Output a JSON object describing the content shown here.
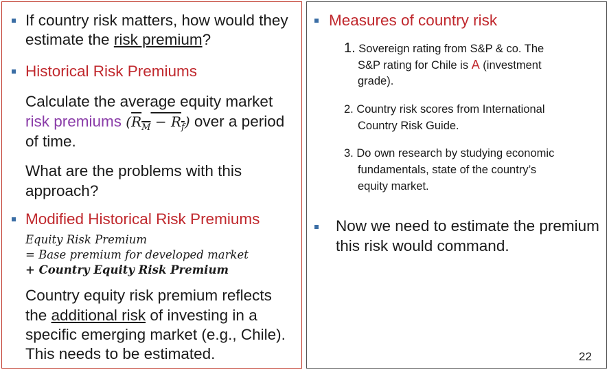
{
  "left": {
    "b1_line1": "If country risk matters, how would they",
    "b1_line2_pre": "estimate the ",
    "b1_line2_link": "risk premium",
    "b1_line2_post": "?",
    "b2_heading": "Historical Risk Premiums",
    "p1_line1": "Calculate the average equity market",
    "p1_line2_colored": "risk premiums",
    "p1_math_open": "(",
    "p1_math_r": "R",
    "p1_math_m": "M",
    "p1_math_minus": " − ",
    "p1_math_f": "f",
    "p1_math_close": ")",
    "p1_line2_post": " over a period",
    "p1_line3": "of time.",
    "p2_line1": "What are the problems with this",
    "p2_line2": "approach?",
    "b3_heading": "Modified Historical Risk Premiums",
    "eq_line1": "Equity Risk Premium",
    "eq_line2": "= Base premium for developed market",
    "eq_line3": "+ Country Equity Risk Premium",
    "p3_line1": "Country equity risk premium reflects",
    "p3_line2_pre": "the ",
    "p3_line2_link": "additional risk",
    "p3_line2_post": " of investing in a",
    "p3_line3": "specific emerging market (e.g., Chile).",
    "p3_line4": "This needs to be estimated."
  },
  "right": {
    "heading": "Measures of country risk",
    "i1_num": "1.",
    "i1_line1": " Sovereign rating from S&P & co. The",
    "i1_line2_pre": "S&P rating for Chile is ",
    "i1_line2_rating": "A",
    "i1_line2_post": " (investment",
    "i1_line3": "grade).",
    "i2_line1": "2. Country risk scores from International",
    "i2_line2": "Country Risk Guide.",
    "i3_line1": "3. Do own research by studying economic",
    "i3_line2": "fundamentals, state of the country’s",
    "i3_line3": "equity market.",
    "b2_line1": "Now we need to estimate the premium",
    "b2_line2": "this risk would command."
  },
  "page_number": "22",
  "colors": {
    "heading_red": "#c0282d",
    "accent_purple": "#8a3ca8",
    "bullet_blue": "#3b6ea5",
    "left_border": "#c0392b"
  }
}
